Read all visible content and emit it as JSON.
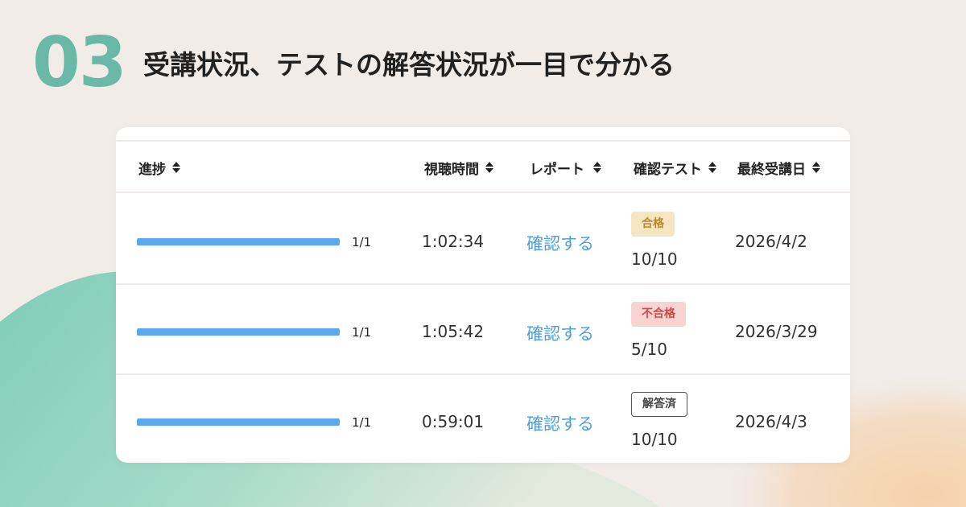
{
  "heading": {
    "number": "03",
    "title": "受講状況、テストの解答状況が一目で分かる"
  },
  "table": {
    "headers": {
      "progress": "進捗",
      "watch_time": "視聴時間",
      "report": "レポート",
      "check_test": "確認テスト",
      "last_date": "最終受講日"
    },
    "rows": [
      {
        "progress_fraction": 1.0,
        "progress_text": "1/1",
        "watch_time": "1:02:34",
        "report_link": "確認する",
        "status": "合格",
        "status_type": "pass",
        "score": "10/10",
        "last_date": "2026/4/2"
      },
      {
        "progress_fraction": 1.0,
        "progress_text": "1/1",
        "watch_time": "1:05:42",
        "report_link": "確認する",
        "status": "不合格",
        "status_type": "fail",
        "score": "5/10",
        "last_date": "2026/3/29"
      },
      {
        "progress_fraction": 1.0,
        "progress_text": "1/1",
        "watch_time": "0:59:01",
        "report_link": "確認する",
        "status": "解答済",
        "status_type": "done",
        "score": "10/10",
        "last_date": "2026/4/3"
      }
    ]
  },
  "colors": {
    "accent_teal": "#6ab8a6",
    "progress_blue": "#5aa9ee",
    "link_blue": "#4c9fe0",
    "pass_bg": "#f6e5c2",
    "fail_bg": "#f7d3d1"
  }
}
